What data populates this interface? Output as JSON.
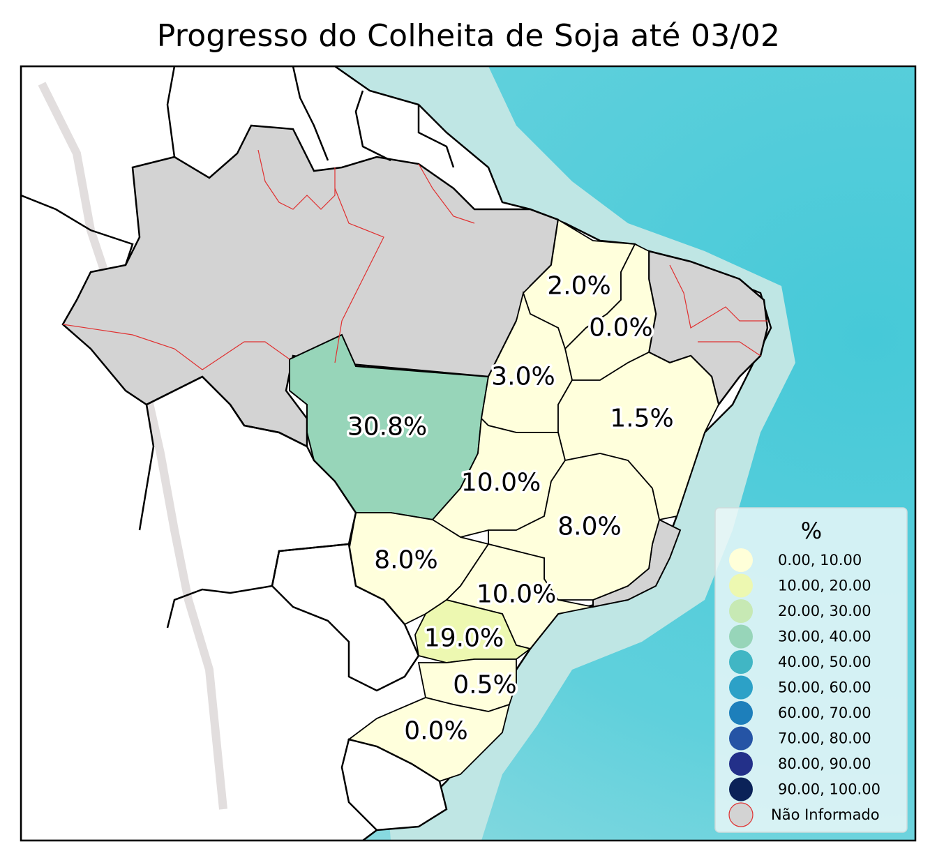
{
  "title": "Progresso do Colheita de Soja até 03/02",
  "colors": {
    "ocean_shallow": "#bfe6e4",
    "ocean_mid": "#7fd6dc",
    "ocean_deep": "#4fcbd8",
    "land": "#ffffff",
    "no_data": "#d3d3d3",
    "border": "#000000",
    "internal_border": "#e03030"
  },
  "states": [
    {
      "name": "MT",
      "label": "30.8%",
      "value": 30.8
    },
    {
      "name": "MA",
      "label": "2.0%",
      "value": 2.0
    },
    {
      "name": "PI",
      "label": "0.0%",
      "value": 0.0
    },
    {
      "name": "TO",
      "label": "3.0%",
      "value": 3.0
    },
    {
      "name": "BA",
      "label": "1.5%",
      "value": 1.5
    },
    {
      "name": "GO",
      "label": "10.0%",
      "value": 10.0
    },
    {
      "name": "MG",
      "label": "8.0%",
      "value": 8.0
    },
    {
      "name": "MS",
      "label": "8.0%",
      "value": 8.0
    },
    {
      "name": "SP",
      "label": "10.0%",
      "value": 10.0
    },
    {
      "name": "PR",
      "label": "19.0%",
      "value": 19.0
    },
    {
      "name": "SC",
      "label": "0.5%",
      "value": 0.5
    },
    {
      "name": "RS",
      "label": "0.0%",
      "value": 0.0
    }
  ],
  "legend": {
    "title": "%",
    "items": [
      {
        "label": "0.00,  10.00",
        "color": "#ffffd9"
      },
      {
        "label": "10.00,  20.00",
        "color": "#edf8b1"
      },
      {
        "label": "20.00,  30.00",
        "color": "#c7e9b4"
      },
      {
        "label": "30.00,  40.00",
        "color": "#97d5b9"
      },
      {
        "label": "40.00,  50.00",
        "color": "#41b6c4"
      },
      {
        "label": "50.00,  60.00",
        "color": "#2ca1c7"
      },
      {
        "label": "60.00,  70.00",
        "color": "#1d7fbb"
      },
      {
        "label": "70.00,  80.00",
        "color": "#2554a5"
      },
      {
        "label": "80.00,  90.00",
        "color": "#233089"
      },
      {
        "label": "90.00, 100.00",
        "color": "#0b2258"
      },
      {
        "label": "Não Informado",
        "color": "#d3d3d3",
        "edge": "#e03030"
      }
    ]
  }
}
